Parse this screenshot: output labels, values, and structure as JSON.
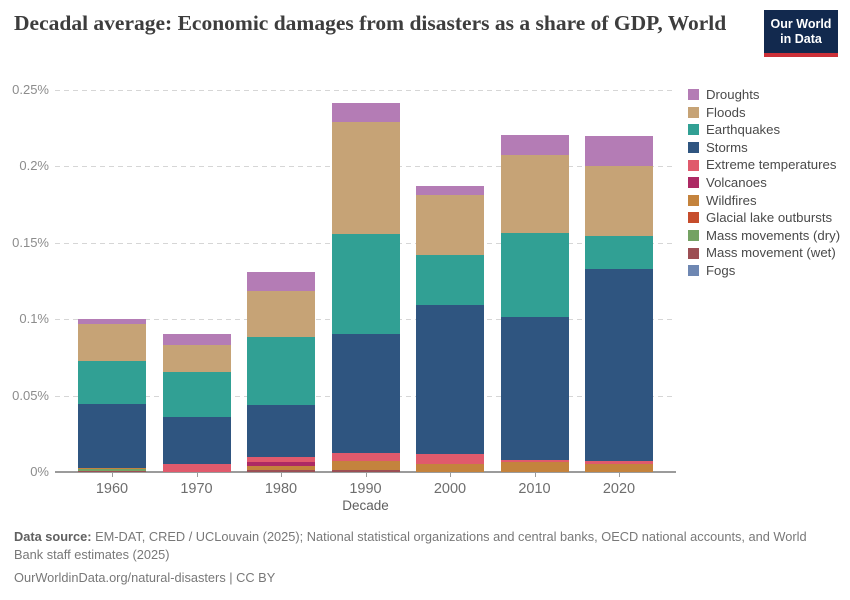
{
  "header": {
    "title": "Decadal average: Economic damages from disasters as a share of GDP, World",
    "logo": {
      "line1": "Our World",
      "line2": "in Data",
      "bg_color": "#12294e",
      "accent_color": "#cc3038"
    }
  },
  "chart_data": {
    "type": "bar",
    "stacked": true,
    "title": "Decadal average: Economic damages from disasters as a share of GDP, World",
    "xlabel": "Decade",
    "ylabel": "",
    "unit": "% of GDP",
    "grid": "dashed horizontal",
    "legend_position": "right",
    "stack_note": "first series listed is the top of each stacked bar",
    "categories": [
      "1960",
      "1970",
      "1980",
      "1990",
      "2000",
      "2010",
      "2020"
    ],
    "y_ticks": [
      0,
      0.05,
      0.1,
      0.15,
      0.2,
      0.25
    ],
    "y_tick_labels": [
      "0%",
      "0.05%",
      "0.1%",
      "0.15%",
      "0.2%",
      "0.25%"
    ],
    "ylim": [
      0,
      0.253
    ],
    "totals": [
      0.099,
      0.09,
      0.131,
      0.24,
      0.187,
      0.22,
      0.22
    ],
    "series": [
      {
        "name": "Droughts",
        "color": "#b47cb5",
        "values": [
          0.0035,
          0.007,
          0.0125,
          0.013,
          0.006,
          0.0125,
          0.0195
        ]
      },
      {
        "name": "Floods",
        "color": "#c6a376",
        "values": [
          0.024,
          0.0175,
          0.03,
          0.073,
          0.039,
          0.0515,
          0.046
        ]
      },
      {
        "name": "Earthquakes",
        "color": "#31a094",
        "values": [
          0.028,
          0.0295,
          0.045,
          0.065,
          0.033,
          0.055,
          0.021
        ]
      },
      {
        "name": "Storms",
        "color": "#2f5580",
        "values": [
          0.042,
          0.0305,
          0.0335,
          0.078,
          0.097,
          0.093,
          0.126
        ]
      },
      {
        "name": "Extreme temperatures",
        "color": "#e05a6c",
        "values": [
          0,
          0.0055,
          0.0035,
          0.005,
          0.007,
          0.0015,
          0.002
        ]
      },
      {
        "name": "Volcanoes",
        "color": "#ad2a64",
        "values": [
          0,
          0,
          0.0025,
          0,
          0,
          0,
          0
        ]
      },
      {
        "name": "Wildfires",
        "color": "#c4833d",
        "values": [
          0.0005,
          0,
          0.0025,
          0.0065,
          0.005,
          0.0065,
          0.005
        ]
      },
      {
        "name": "Glacial lake outbursts",
        "color": "#c64d2c",
        "values": [
          0,
          0,
          0,
          0,
          0,
          0,
          0
        ]
      },
      {
        "name": "Mass movements (dry)",
        "color": "#74a263",
        "values": [
          0.0015,
          0,
          0,
          0,
          0,
          0,
          0
        ]
      },
      {
        "name": "Mass movement (wet)",
        "color": "#9c4f54",
        "values": [
          0.0005,
          0,
          0.0015,
          0.001,
          0,
          0,
          0
        ]
      },
      {
        "name": "Fogs",
        "color": "#6e87b2",
        "values": [
          0,
          0,
          0,
          0,
          0,
          0,
          0
        ]
      }
    ]
  },
  "footer": {
    "source_label": "Data source:",
    "source_text": "EM-DAT, CRED / UCLouvain (2025); National statistical organizations and central banks, OECD national accounts, and World Bank staff estimates (2025)",
    "link_line": "OurWorldinData.org/natural-disasters | CC BY"
  }
}
